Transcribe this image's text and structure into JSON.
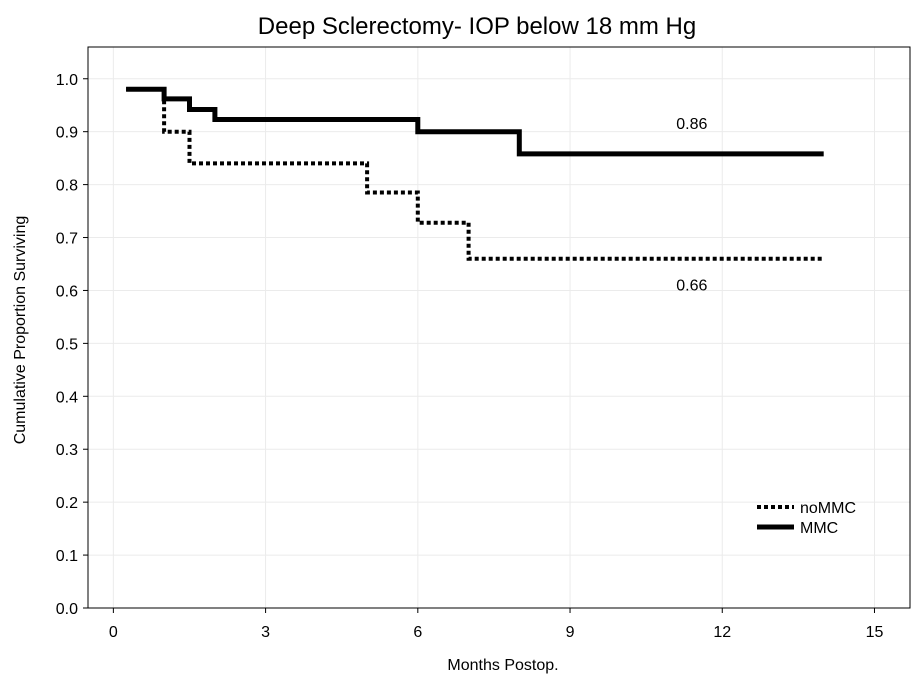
{
  "chart_data": {
    "type": "line",
    "subtype": "step",
    "title": "Deep Sclerectomy- IOP below 18 mm Hg",
    "xlabel": "Months Postop.",
    "ylabel": "Cumulative Proportion Surviving",
    "xlim": [
      -0.5,
      15.7
    ],
    "ylim": [
      0.0,
      1.06
    ],
    "xticks": [
      0,
      3,
      6,
      9,
      12,
      15
    ],
    "yticks": [
      0.0,
      0.1,
      0.2,
      0.3,
      0.4,
      0.5,
      0.6,
      0.7,
      0.8,
      0.9,
      1.0
    ],
    "xtick_labels": [
      "0",
      "3",
      "6",
      "9",
      "12",
      "15"
    ],
    "ytick_labels": [
      "0.0",
      "0.1",
      "0.2",
      "0.3",
      "0.4",
      "0.5",
      "0.6",
      "0.7",
      "0.8",
      "0.9",
      "1.0"
    ],
    "grid": true,
    "legend": "bottom-right",
    "series": [
      {
        "name": "noMMC",
        "style": "dotted",
        "color": "#000000",
        "points": [
          [
            0.25,
            0.98
          ],
          [
            1.0,
            0.98
          ],
          [
            1.0,
            0.9
          ],
          [
            1.5,
            0.9
          ],
          [
            1.5,
            0.84
          ],
          [
            5.0,
            0.84
          ],
          [
            5.0,
            0.785
          ],
          [
            6.0,
            0.785
          ],
          [
            6.0,
            0.728
          ],
          [
            7.0,
            0.728
          ],
          [
            7.0,
            0.66
          ],
          [
            14.0,
            0.66
          ]
        ]
      },
      {
        "name": "MMC",
        "style": "solid",
        "color": "#000000",
        "points": [
          [
            0.25,
            0.98
          ],
          [
            1.0,
            0.98
          ],
          [
            1.0,
            0.962
          ],
          [
            1.5,
            0.962
          ],
          [
            1.5,
            0.942
          ],
          [
            2.0,
            0.942
          ],
          [
            2.0,
            0.923
          ],
          [
            6.0,
            0.923
          ],
          [
            6.0,
            0.9
          ],
          [
            8.0,
            0.9
          ],
          [
            8.0,
            0.858
          ],
          [
            14.0,
            0.858
          ]
        ]
      }
    ],
    "annotations": [
      {
        "text": "0.86",
        "x": 11.4,
        "y": 0.905
      },
      {
        "text": "0.66",
        "x": 11.4,
        "y": 0.6
      }
    ]
  }
}
